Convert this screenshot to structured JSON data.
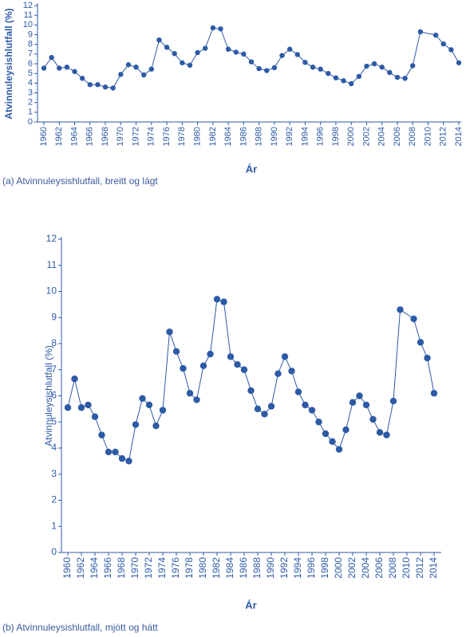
{
  "chart_data": [
    {
      "type": "line",
      "caption": "(a) Atvinnuleysishlutfall, breitt og lágt",
      "x_label": "Ár",
      "y_label": "Atvinnuleysishlutfall (%)",
      "x": [
        1960,
        1961,
        1962,
        1963,
        1964,
        1965,
        1966,
        1967,
        1968,
        1969,
        1970,
        1971,
        1972,
        1973,
        1974,
        1975,
        1976,
        1977,
        1978,
        1979,
        1980,
        1981,
        1982,
        1983,
        1984,
        1985,
        1986,
        1987,
        1988,
        1989,
        1990,
        1991,
        1992,
        1993,
        1994,
        1995,
        1996,
        1997,
        1998,
        1999,
        2000,
        2001,
        2002,
        2003,
        2004,
        2005,
        2006,
        2007,
        2008,
        2009,
        2011,
        2012,
        2013,
        2014
      ],
      "values": [
        5.55,
        6.65,
        5.55,
        5.65,
        5.2,
        4.5,
        3.85,
        3.85,
        3.6,
        3.5,
        4.9,
        5.9,
        5.65,
        4.85,
        5.45,
        8.45,
        7.7,
        7.05,
        6.1,
        5.85,
        7.15,
        7.6,
        9.7,
        9.6,
        7.5,
        7.2,
        7.0,
        6.2,
        5.5,
        5.3,
        5.6,
        6.85,
        7.5,
        6.95,
        6.15,
        5.65,
        5.45,
        5.0,
        4.55,
        4.25,
        3.95,
        4.7,
        5.75,
        6.0,
        5.65,
        5.1,
        4.6,
        4.5,
        5.8,
        9.3,
        8.95,
        8.05,
        7.45,
        6.1
      ],
      "color": "#2d5aa6",
      "xlim": [
        1960,
        2014
      ],
      "xticks": [
        1960,
        1962,
        1964,
        1966,
        1968,
        1970,
        1972,
        1974,
        1976,
        1978,
        1980,
        1982,
        1984,
        1986,
        1988,
        1990,
        1992,
        1994,
        1996,
        1998,
        2000,
        2002,
        2004,
        2006,
        2008,
        2010,
        2012,
        2014
      ],
      "ylim": [
        0,
        12
      ],
      "yticks": [
        0,
        1,
        2,
        3,
        4,
        5,
        6,
        7,
        8,
        9,
        10,
        11,
        12
      ]
    },
    {
      "type": "line",
      "caption": "(b) Atvinnuleysishlutfall, mjótt og hátt",
      "x_label": "Ár",
      "y_label": "Atvinnuleysishlutfall (%)",
      "x": [
        1960,
        1961,
        1962,
        1963,
        1964,
        1965,
        1966,
        1967,
        1968,
        1969,
        1970,
        1971,
        1972,
        1973,
        1974,
        1975,
        1976,
        1977,
        1978,
        1979,
        1980,
        1981,
        1982,
        1983,
        1984,
        1985,
        1986,
        1987,
        1988,
        1989,
        1990,
        1991,
        1992,
        1993,
        1994,
        1995,
        1996,
        1997,
        1998,
        1999,
        2000,
        2001,
        2002,
        2003,
        2004,
        2005,
        2006,
        2007,
        2008,
        2009,
        2011,
        2012,
        2013,
        2014
      ],
      "values": [
        5.55,
        6.65,
        5.55,
        5.65,
        5.2,
        4.5,
        3.85,
        3.85,
        3.6,
        3.5,
        4.9,
        5.9,
        5.65,
        4.85,
        5.45,
        8.45,
        7.7,
        7.05,
        6.1,
        5.85,
        7.15,
        7.6,
        9.7,
        9.6,
        7.5,
        7.2,
        7.0,
        6.2,
        5.5,
        5.3,
        5.6,
        6.85,
        7.5,
        6.95,
        6.15,
        5.65,
        5.45,
        5.0,
        4.55,
        4.25,
        3.95,
        4.7,
        5.75,
        6.0,
        5.65,
        5.1,
        4.6,
        4.5,
        5.8,
        9.3,
        8.95,
        8.05,
        7.45,
        6.1
      ],
      "color": "#2d5aa6",
      "xlim": [
        1960,
        2014
      ],
      "xticks": [
        1960,
        1962,
        1964,
        1966,
        1968,
        1970,
        1972,
        1974,
        1976,
        1978,
        1980,
        1982,
        1984,
        1986,
        1988,
        1990,
        1992,
        1994,
        1996,
        1998,
        2000,
        2002,
        2004,
        2006,
        2008,
        2010,
        2012,
        2014
      ],
      "ylim": [
        0,
        12
      ],
      "yticks": [
        0,
        1,
        2,
        3,
        4,
        5,
        6,
        7,
        8,
        9,
        10,
        11,
        12
      ]
    }
  ]
}
